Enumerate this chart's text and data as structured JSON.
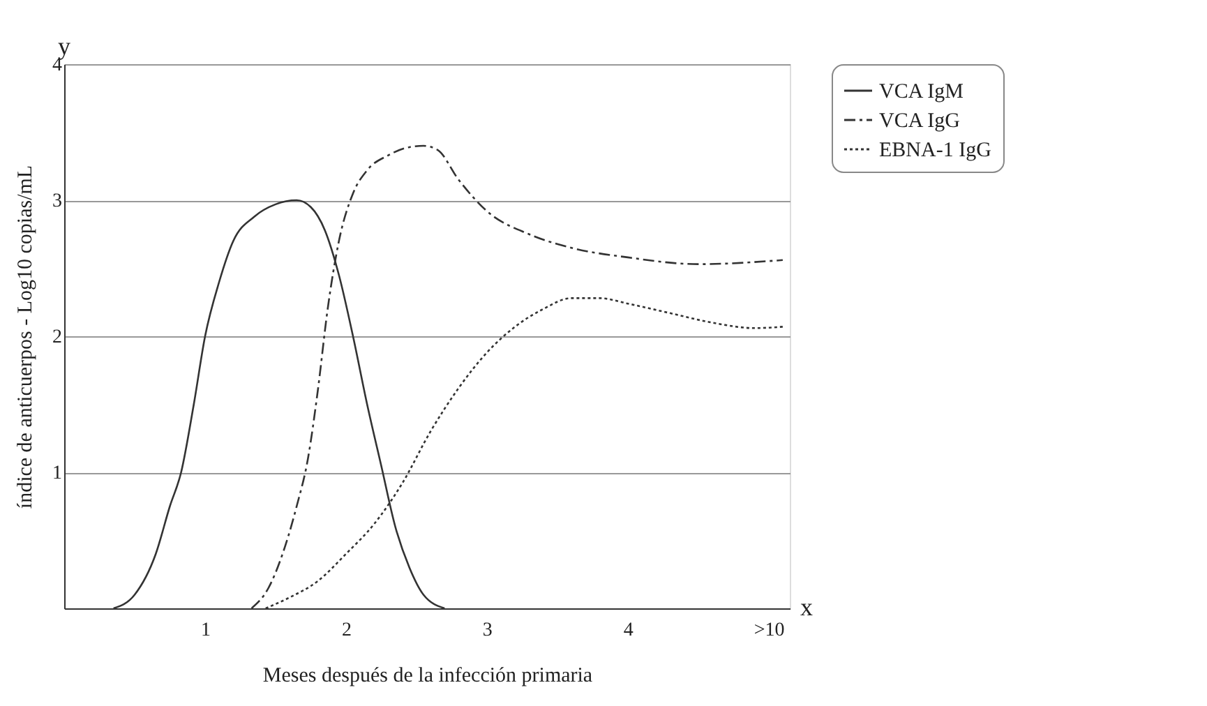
{
  "chart_data": {
    "type": "line",
    "xlabel": "Meses después de la infección primaria",
    "ylabel": "índice de anticuerpos - Log10 copias/mL",
    "annotations": [
      "x",
      "y"
    ],
    "xlim": [
      0,
      5.15
    ],
    "xticks": [
      1,
      2,
      3,
      4,
      {
        "value": 5,
        "label": ">10"
      }
    ],
    "ylim": [
      0,
      4
    ],
    "yticks": [
      1,
      2,
      3,
      4
    ],
    "grid": "y",
    "legend": "right",
    "marker": "none",
    "series": [
      {
        "name": "VCA IgM",
        "color": "#333333",
        "line_style": "solid",
        "x": [
          0.35,
          0.5,
          0.65,
          0.75,
          0.83,
          0.92,
          1.0,
          1.1,
          1.2,
          1.35,
          1.5,
          1.65,
          1.75,
          1.85,
          1.95,
          2.05,
          2.15,
          2.25,
          2.35,
          2.45,
          2.55,
          2.7
        ],
        "values": [
          0,
          0.1,
          0.4,
          0.75,
          1.0,
          1.5,
          2.0,
          2.4,
          2.7,
          2.88,
          2.97,
          3.0,
          2.95,
          2.78,
          2.45,
          2.0,
          1.5,
          1.05,
          0.6,
          0.3,
          0.1,
          0
        ]
      },
      {
        "name": "VCA IgG",
        "color": "#333333",
        "line_style": "dashed",
        "x": [
          1.33,
          1.45,
          1.55,
          1.65,
          1.73,
          1.8,
          1.87,
          1.95,
          2.05,
          2.15,
          2.3,
          2.45,
          2.55,
          2.65,
          2.8,
          3.0,
          3.3,
          3.6,
          4.0,
          4.5,
          5.1
        ],
        "values": [
          0,
          0.15,
          0.4,
          0.75,
          1.1,
          1.6,
          2.2,
          2.7,
          3.05,
          3.22,
          3.33,
          3.39,
          3.4,
          3.37,
          3.15,
          2.92,
          2.75,
          2.65,
          2.58,
          2.53,
          2.56
        ]
      },
      {
        "name": "EBNA-1 IgG",
        "color": "#333333",
        "line_style": "dotted",
        "x": [
          1.43,
          1.6,
          1.8,
          2.0,
          2.2,
          2.4,
          2.6,
          2.8,
          3.0,
          3.2,
          3.4,
          3.6,
          3.8,
          4.0,
          4.3,
          4.6,
          4.9,
          5.1
        ],
        "values": [
          0,
          0.08,
          0.2,
          0.4,
          0.62,
          0.92,
          1.3,
          1.62,
          1.88,
          2.07,
          2.2,
          2.28,
          2.28,
          2.24,
          2.17,
          2.1,
          2.06,
          2.07
        ]
      }
    ]
  }
}
